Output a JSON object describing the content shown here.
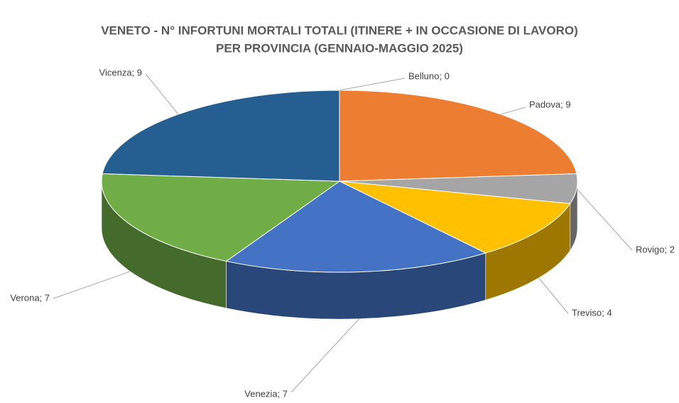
{
  "chart_data": {
    "type": "pie3d",
    "title": [
      "VENETO - N° INFORTUNI MORTALI TOTALI (ITINERE + IN OCCASIONE DI LAVORO)",
      "PER PROVINCIA (GENNAIO-MAGGIO 2025)"
    ],
    "categories": [
      "Belluno",
      "Padova",
      "Rovigo",
      "Treviso",
      "Venezia",
      "Verona",
      "Vicenza"
    ],
    "values": [
      0,
      9,
      2,
      4,
      7,
      7,
      9
    ],
    "value_labels": [
      "Belluno; 0",
      "Padova; 9",
      "Rovigo; 2",
      "Treviso; 4",
      "Venezia; 7",
      "Verona; 7",
      "Vicenza; 9"
    ],
    "colors": [
      "#5b9bd5",
      "#ed7d31",
      "#a5a5a5",
      "#ffc000",
      "#4472c4",
      "#70ad47",
      "#255e91"
    ]
  }
}
